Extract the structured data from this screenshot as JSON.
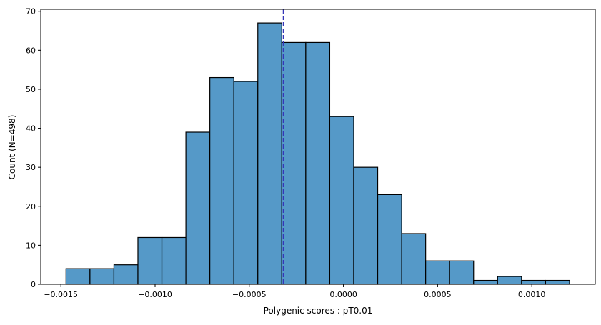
{
  "chart_data": {
    "type": "bar",
    "subtype": "histogram",
    "title": "",
    "xlabel": "Polygenic scores : pT0.01",
    "ylabel": "Count (N=498)",
    "bin_start": -0.001473,
    "bin_width": 0.0001273,
    "values": [
      4,
      4,
      5,
      12,
      12,
      39,
      53,
      52,
      67,
      62,
      62,
      43,
      30,
      23,
      13,
      6,
      6,
      1,
      2,
      1,
      1
    ],
    "xlim": [
      -0.001607,
      0.001337
    ],
    "ylim": [
      0,
      70.5
    ],
    "xticks": [
      -0.0015,
      -0.001,
      -0.0005,
      0.0,
      0.0005,
      0.001
    ],
    "xtick_labels": [
      "−0.0015",
      "−0.0010",
      "−0.0005",
      "0.0000",
      "0.0005",
      "0.0010"
    ],
    "yticks": [
      0,
      10,
      20,
      30,
      40,
      50,
      60,
      70
    ],
    "ytick_labels": [
      "0",
      "10",
      "20",
      "30",
      "40",
      "50",
      "60",
      "70"
    ],
    "vline": {
      "x": -0.000319,
      "style": "dashed",
      "color": "#3636b8"
    },
    "bar_color": "#5599c8",
    "edge_color": "#000000",
    "grid": false
  }
}
